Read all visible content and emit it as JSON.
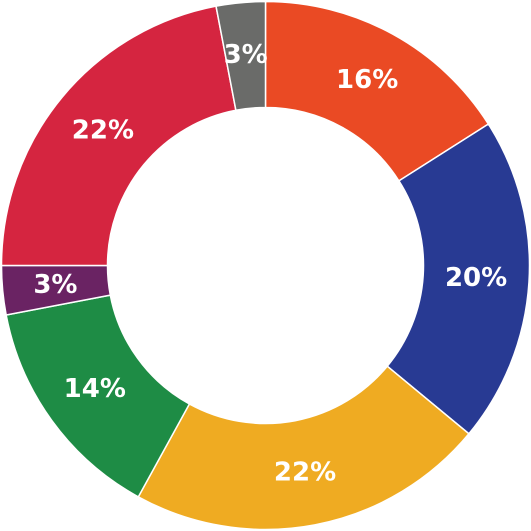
{
  "chart_data": {
    "type": "donut",
    "values": [
      16,
      20,
      22,
      14,
      3,
      22,
      3
    ],
    "value_labels": [
      "16%",
      "20%",
      "22%",
      "14%",
      "3%",
      "22%",
      "3%"
    ],
    "colors": [
      "#ea4a24",
      "#283a93",
      "#efab22",
      "#1e8c45",
      "#6a2363",
      "#d52540",
      "#6a6b69"
    ]
  }
}
